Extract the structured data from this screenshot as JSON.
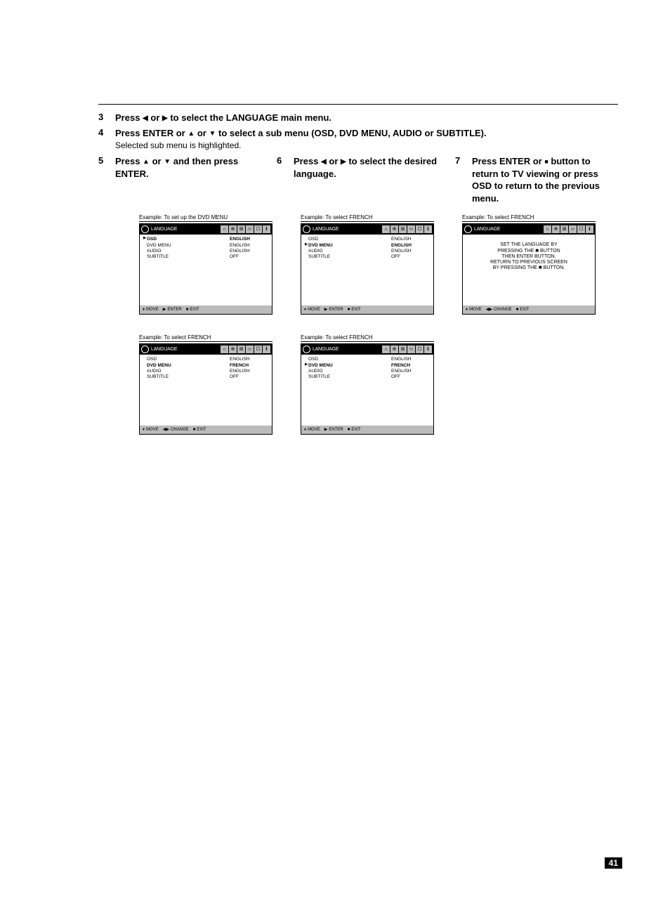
{
  "glyphs": {
    "left": "◀",
    "right": "▶",
    "up": "▲",
    "down": "▼",
    "stop": "■",
    "updown": "♦",
    "leftright": "◀▶",
    "play": "▶"
  },
  "steps": {
    "s3": {
      "num": "3",
      "pre": "Press ",
      "mid": " or ",
      "post": " to select the LANGUAGE main menu."
    },
    "s4": {
      "num": "4",
      "pre": "Press ENTER or ",
      "mid": " or ",
      "post": " to select a sub menu (OSD, DVD MENU, AUDIO or SUBTITLE).",
      "sub": "Selected sub menu is highlighted."
    },
    "s5": {
      "num": "5",
      "pre": "Press ",
      "mid": " or ",
      "post": " and then press ENTER."
    },
    "s6": {
      "num": "6",
      "pre": "Press ",
      "mid": " or ",
      "post": " to select the desired language."
    },
    "s7": {
      "num": "7",
      "pre": "Press ENTER or ",
      "post": " button to return to TV viewing or press OSD to return to the previous menu."
    }
  },
  "tabs": [
    "⌂",
    "⊕",
    "⊞",
    "☺",
    "☐",
    "ℹ"
  ],
  "footer": {
    "move": "MOVE",
    "enter": "ENTER",
    "exit": "EXIT",
    "change": "CHANGE"
  },
  "panel_title": "LANGUAGE",
  "menu_items": [
    {
      "lbl": "OSD",
      "val": "ENGLISH"
    },
    {
      "lbl": "DVD MENU",
      "val": "ENGLISH"
    },
    {
      "lbl": "AUDIO",
      "val": "ENGLISH"
    },
    {
      "lbl": "SUBTITLE",
      "val": "OFF"
    }
  ],
  "captions": {
    "c1": "Example: To set up the DVD MENU",
    "c2": "Example: To select FRENCH",
    "c3": "Example: To select FRENCH",
    "c4": "Example: To select FRENCH",
    "c5": "Example: To select FRENCH"
  },
  "panel3": {
    "line1": "SET THE LANGUAGE BY",
    "line2a": "PRESSING THE ",
    "line2b": " BUTTON",
    "line3": "THEN ENTER BUTTON.",
    "line4": "RETURN TO PREVIOUS SCREEN",
    "line5a": "BY PRESSING THE ",
    "line5b": " BUTTON."
  },
  "panel4_rows": [
    {
      "lbl": "OSD",
      "val": "ENGLISH"
    },
    {
      "lbl": "DVD MENU",
      "val": "FRENCH"
    },
    {
      "lbl": "AUDIO",
      "val": "ENGLISH"
    },
    {
      "lbl": "SUBTITLE",
      "val": "OFF"
    }
  ],
  "panel5_rows": [
    {
      "lbl": "OSD",
      "val": "ENGLISH"
    },
    {
      "lbl": "DVD MENU",
      "val": "FRENCH"
    },
    {
      "lbl": "AUDIO",
      "val": "ENGLISH"
    },
    {
      "lbl": "SUBTITLE",
      "val": "OFF"
    }
  ],
  "page": "41"
}
